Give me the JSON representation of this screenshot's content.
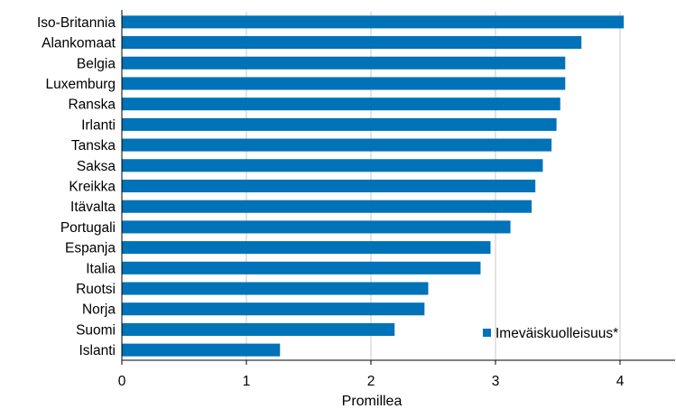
{
  "chart_data": {
    "type": "bar",
    "orientation": "horizontal",
    "categories": [
      "Iso-Britannia",
      "Alankomaat",
      "Belgia",
      "Luxemburg",
      "Ranska",
      "Irlanti",
      "Tanska",
      "Saksa",
      "Kreikka",
      "Itävalta",
      "Portugali",
      "Espanja",
      "Italia",
      "Ruotsi",
      "Norja",
      "Suomi",
      "Islanti"
    ],
    "series": [
      {
        "name": "Imeväiskuolleisuus*",
        "color": "#0072b8",
        "values": [
          4.03,
          3.69,
          3.56,
          3.56,
          3.52,
          3.49,
          3.45,
          3.38,
          3.32,
          3.29,
          3.12,
          2.96,
          2.88,
          2.46,
          2.43,
          2.19,
          1.27
        ]
      }
    ],
    "xlabel": "Promillea",
    "ylabel": "",
    "xlim": [
      0,
      4.45
    ],
    "xticks": [
      "0",
      "1",
      "2",
      "3",
      "4"
    ],
    "grid": "vertical",
    "legend_position": "bottom-right"
  }
}
